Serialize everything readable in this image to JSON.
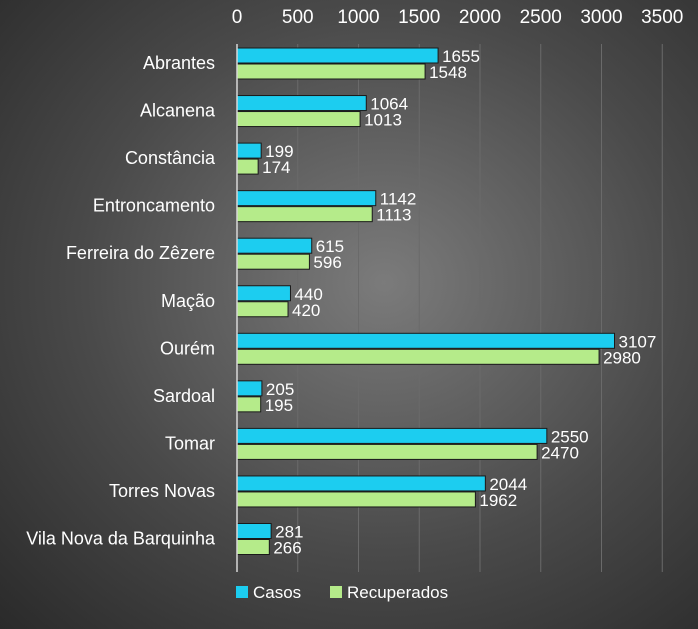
{
  "chart_data": {
    "type": "bar",
    "orientation": "horizontal",
    "categories": [
      "Abrantes",
      "Alcanena",
      "Constância",
      "Entroncamento",
      "Ferreira do Zêzere",
      "Mação",
      "Ourém",
      "Sardoal",
      "Tomar",
      "Torres Novas",
      "Vila Nova da Barquinha"
    ],
    "series": [
      {
        "name": "Casos",
        "color": "#1ccdf0",
        "values": [
          1655,
          1064,
          199,
          1142,
          615,
          440,
          3107,
          205,
          2550,
          2044,
          281
        ]
      },
      {
        "name": "Recuperados",
        "color": "#b5eb8a",
        "values": [
          1548,
          1013,
          174,
          1113,
          596,
          420,
          2980,
          195,
          2470,
          1962,
          266
        ]
      }
    ],
    "xlim": [
      0,
      3500
    ],
    "ticks": [
      0,
      500,
      1000,
      1500,
      2000,
      2500,
      3000,
      3500
    ],
    "x_axis_position": "top",
    "grid": true,
    "legend": "bottom",
    "title": "",
    "xlabel": "",
    "ylabel": ""
  }
}
